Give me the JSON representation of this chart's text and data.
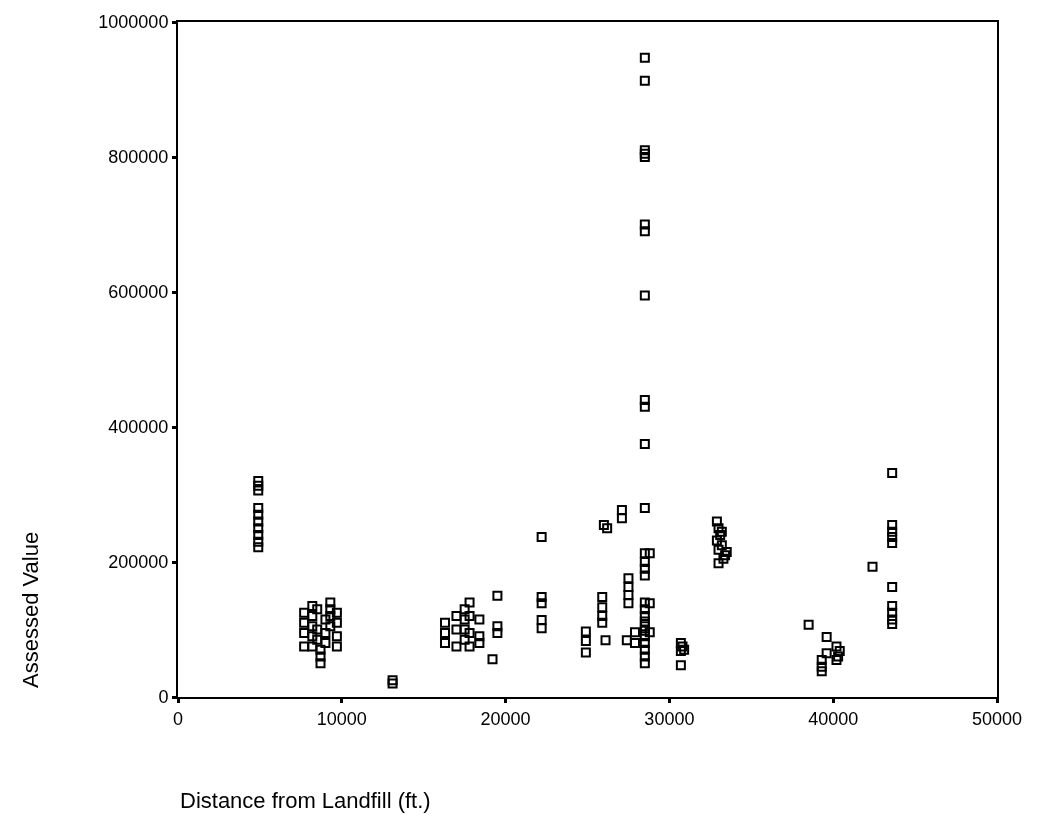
{
  "chart_data": {
    "type": "scatter",
    "xlabel": "Distance from Landfill (ft.)",
    "ylabel": "Assessed Value",
    "xlim": [
      0,
      50000
    ],
    "xticks": [
      0,
      10000,
      20000,
      30000,
      40000,
      50000
    ],
    "ylim": [
      0,
      1000000
    ],
    "yticks": [
      0,
      200000,
      400000,
      600000,
      800000,
      1000000
    ],
    "marker": "square",
    "series": [
      {
        "color": "#000000",
        "x": [
          4900,
          4900,
          4900,
          4900,
          4900,
          4900,
          4900,
          4900,
          4900,
          4900,
          7700,
          7700,
          7700,
          7700,
          8200,
          8200,
          8200,
          8200,
          8200,
          8500,
          8500,
          8500,
          8700,
          8700,
          8700,
          9000,
          9000,
          9000,
          9300,
          9300,
          9300,
          9300,
          9700,
          9700,
          9700,
          9700,
          13100,
          13100,
          16300,
          16300,
          16300,
          17000,
          17000,
          17000,
          17500,
          17500,
          17500,
          17500,
          17800,
          17800,
          17800,
          17800,
          18400,
          18400,
          18400,
          19200,
          19500,
          19500,
          19500,
          22200,
          22200,
          22200,
          22200,
          22200,
          24900,
          24900,
          24900,
          25900,
          25900,
          25900,
          25900,
          26100,
          26000,
          26200,
          27100,
          27100,
          27500,
          27500,
          27500,
          27500,
          27400,
          27900,
          27900,
          28500,
          28500,
          28500,
          28500,
          28500,
          28500,
          28500,
          28500,
          28500,
          28500,
          28500,
          28500,
          28500,
          28500,
          28500,
          28500,
          28800,
          28800,
          28800,
          28500,
          28500,
          28500,
          28500,
          28500,
          28500,
          28500,
          28500,
          28500,
          28500,
          28500,
          30700,
          30800,
          30900,
          30700,
          30700,
          32900,
          33000,
          33100,
          32900,
          33200,
          33000,
          33400,
          33300,
          33000,
          33500,
          33200,
          38500,
          39300,
          39300,
          39300,
          39600,
          39600,
          40200,
          40400,
          40300,
          40200,
          42400,
          43600,
          43600,
          43600,
          43600,
          43600,
          43600,
          43600,
          43600,
          43600,
          43600
        ],
        "values": [
          320000,
          313000,
          306000,
          280000,
          270000,
          260000,
          250000,
          240000,
          230000,
          222000,
          125000,
          110000,
          95000,
          75000,
          135000,
          120000,
          105000,
          90000,
          75000,
          130000,
          100000,
          85000,
          70000,
          60000,
          50000,
          115000,
          95000,
          80000,
          140000,
          130000,
          120000,
          105000,
          125000,
          110000,
          90000,
          75000,
          25000,
          20000,
          110000,
          95000,
          80000,
          120000,
          100000,
          75000,
          130000,
          115000,
          100000,
          85000,
          140000,
          120000,
          95000,
          75000,
          115000,
          90000,
          80000,
          56000,
          150000,
          105000,
          95000,
          237000,
          148000,
          139000,
          114000,
          102000,
          97000,
          83000,
          66000,
          148000,
          133000,
          120000,
          110000,
          84000,
          255000,
          250000,
          277000,
          265000,
          176000,
          163000,
          151000,
          139000,
          84000,
          96000,
          80000,
          947000,
          913000,
          810000,
          805000,
          800000,
          700000,
          690000,
          595000,
          440000,
          430000,
          375000,
          280000,
          213000,
          200000,
          190000,
          180000,
          213000,
          139000,
          96000,
          140000,
          130000,
          120000,
          112000,
          105000,
          98000,
          90000,
          80000,
          70000,
          60000,
          50000,
          80000,
          75000,
          70000,
          68000,
          47000,
          260000,
          250000,
          240000,
          232000,
          225000,
          218000,
          210000,
          205000,
          198000,
          215000,
          245000,
          107000,
          55000,
          45000,
          38000,
          65000,
          89000,
          75000,
          68000,
          60000,
          55000,
          193000,
          332000,
          255000,
          245000,
          237000,
          228000,
          163000,
          135000,
          125000,
          115000,
          108000
        ]
      }
    ]
  }
}
